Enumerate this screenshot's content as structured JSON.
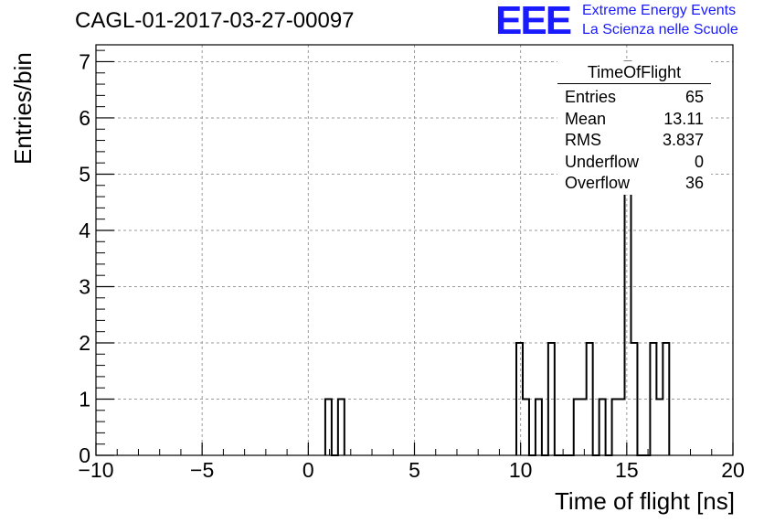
{
  "header": {
    "title": "CAGL-01-2017-03-27-00097",
    "logo_text": "EEE",
    "logo_line1": "Extreme Energy Events",
    "logo_line2": "La Scienza nelle Scuole"
  },
  "colors": {
    "logo": "#1a1aff",
    "grid": "#9a9a9a",
    "histogram": "#000000"
  },
  "stats_box": {
    "title": "TimeOfFlight",
    "rows": [
      {
        "label": "Entries",
        "value": "65"
      },
      {
        "label": "Mean",
        "value": "13.11"
      },
      {
        "label": "RMS",
        "value": "3.837"
      },
      {
        "label": "Underflow",
        "value": "0"
      },
      {
        "label": "Overflow",
        "value": "36"
      }
    ]
  },
  "chart_data": {
    "type": "histogram",
    "title": "CAGL-01-2017-03-27-00097",
    "xlabel": "Time of flight [ns]",
    "ylabel": "Entries/bin",
    "xlim": [
      -10,
      20
    ],
    "ylim": [
      0,
      7.3
    ],
    "bin_width": 0.3,
    "grid": true,
    "x_ticks": [
      "−10",
      "−5",
      "0",
      "5",
      "10",
      "15",
      "20"
    ],
    "x_tick_values": [
      -10,
      -5,
      0,
      5,
      10,
      15,
      20
    ],
    "y_ticks": [
      "0",
      "1",
      "2",
      "3",
      "4",
      "5",
      "6",
      "7"
    ],
    "y_tick_values": [
      0,
      1,
      2,
      3,
      4,
      5,
      6,
      7
    ],
    "bins": [
      {
        "x": 0.8,
        "value": 1
      },
      {
        "x": 1.1,
        "value": 0
      },
      {
        "x": 1.4,
        "value": 1
      },
      {
        "x": 9.8,
        "value": 2
      },
      {
        "x": 10.1,
        "value": 1
      },
      {
        "x": 10.4,
        "value": 0
      },
      {
        "x": 10.7,
        "value": 1
      },
      {
        "x": 11.0,
        "value": 0
      },
      {
        "x": 11.3,
        "value": 2
      },
      {
        "x": 11.6,
        "value": 0
      },
      {
        "x": 11.9,
        "value": 0
      },
      {
        "x": 12.2,
        "value": 0
      },
      {
        "x": 12.5,
        "value": 1
      },
      {
        "x": 12.8,
        "value": 1
      },
      {
        "x": 13.1,
        "value": 2
      },
      {
        "x": 13.4,
        "value": 0
      },
      {
        "x": 13.7,
        "value": 1
      },
      {
        "x": 14.0,
        "value": 0
      },
      {
        "x": 14.3,
        "value": 1
      },
      {
        "x": 14.6,
        "value": 1
      },
      {
        "x": 14.9,
        "value": 7
      },
      {
        "x": 15.2,
        "value": 2
      },
      {
        "x": 15.5,
        "value": 0
      },
      {
        "x": 15.8,
        "value": 0
      },
      {
        "x": 16.1,
        "value": 2
      },
      {
        "x": 16.4,
        "value": 1
      },
      {
        "x": 16.7,
        "value": 2
      }
    ]
  }
}
